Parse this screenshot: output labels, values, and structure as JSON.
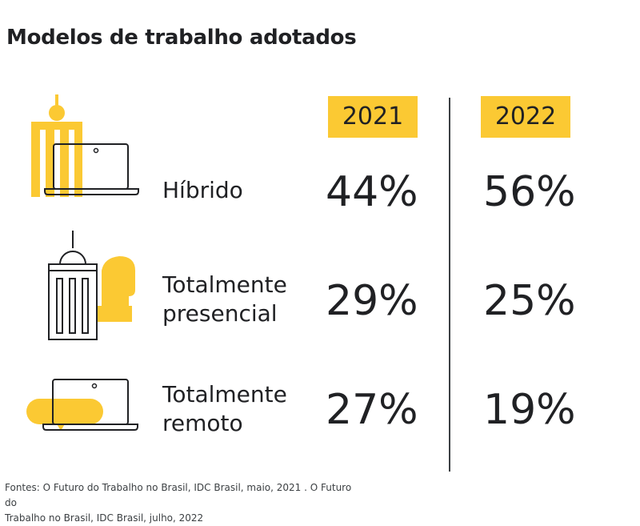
{
  "title": "Modelos de trabalho adotados",
  "colors": {
    "accent": "#FBC933",
    "ink": "#202124"
  },
  "chart_data": {
    "type": "table",
    "title": "Modelos de trabalho adotados",
    "columns": [
      "2021",
      "2022"
    ],
    "unit": "%",
    "rows": [
      {
        "label_lines": [
          "Híbrido"
        ],
        "icon": "office-building-laptop-icon",
        "values": [
          44,
          56
        ],
        "display": [
          "44%",
          "56%"
        ]
      },
      {
        "label_lines": [
          "Totalmente",
          "presencial"
        ],
        "icon": "office-building-person-icon",
        "values": [
          29,
          25
        ],
        "display": [
          "29%",
          "25%"
        ]
      },
      {
        "label_lines": [
          "Totalmente",
          "remoto"
        ],
        "icon": "laptop-chat-bubble-icon",
        "values": [
          27,
          19
        ],
        "display": [
          "27%",
          "19%"
        ]
      }
    ]
  },
  "source_lines": [
    "Fontes:  O Futuro do Trabalho no Brasil, IDC Brasil, maio, 2021 . O Futuro do",
    "Trabalho no Brasil, IDC Brasil, julho, 2022"
  ]
}
